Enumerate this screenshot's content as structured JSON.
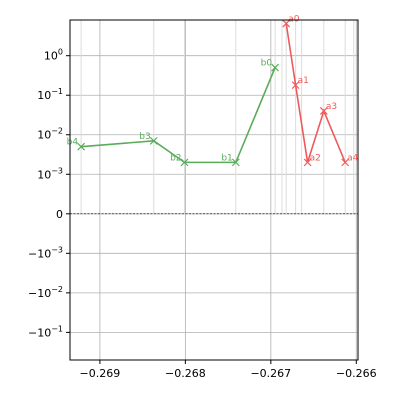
{
  "chart_data": {
    "type": "line",
    "xscale": "linear",
    "yscale": "symlog",
    "symlog_linthresh": 0.001,
    "xlim": [
      -0.26935,
      -0.26598
    ],
    "ylim": [
      -0.5,
      8
    ],
    "grid": true,
    "zero_line": "dashed",
    "x_ticks": [
      {
        "value": -0.269,
        "label": "−0.269"
      },
      {
        "value": -0.268,
        "label": "−0.268"
      },
      {
        "value": -0.267,
        "label": "−0.267"
      },
      {
        "value": -0.266,
        "label": "−0.266"
      }
    ],
    "y_ticks": [
      {
        "value": 1,
        "label": "10",
        "exp": "0"
      },
      {
        "value": 0.1,
        "label": "10",
        "exp": "−1"
      },
      {
        "value": 0.01,
        "label": "10",
        "exp": "−2"
      },
      {
        "value": 0.001,
        "label": "10",
        "exp": "−3"
      },
      {
        "value": 0,
        "label": "0",
        "exp": ""
      },
      {
        "value": -0.001,
        "label": "−10",
        "exp": "−3"
      },
      {
        "value": -0.01,
        "label": "−10",
        "exp": "−2"
      },
      {
        "value": -0.1,
        "label": "−10",
        "exp": "−1"
      }
    ],
    "stems": [
      -0.26922,
      -0.26837,
      -0.26801,
      -0.26741,
      -0.26695,
      -0.26687,
      -0.26682,
      -0.26671,
      -0.26664,
      -0.26638,
      -0.26613,
      -0.26603
    ],
    "series": [
      {
        "color": "#5aab5a",
        "marker": "x",
        "points": [
          {
            "label": "b4",
            "x": -0.26922,
            "y": 0.005
          },
          {
            "label": "b3",
            "x": -0.26837,
            "y": 0.007
          },
          {
            "label": "b2",
            "x": -0.26801,
            "y": 0.002
          },
          {
            "label": "b1",
            "x": -0.26741,
            "y": 0.002
          },
          {
            "label": "b0",
            "x": -0.26695,
            "y": 0.5
          }
        ]
      },
      {
        "color": "#ee5a5a",
        "marker": "x",
        "points": [
          {
            "label": "a0",
            "x": -0.26682,
            "y": 6.5
          },
          {
            "label": "a1",
            "x": -0.26671,
            "y": 0.18
          },
          {
            "label": "a2",
            "x": -0.26657,
            "y": 0.002
          },
          {
            "label": "a3",
            "x": -0.26638,
            "y": 0.04
          },
          {
            "label": "a4",
            "x": -0.26613,
            "y": 0.002
          }
        ]
      }
    ]
  }
}
